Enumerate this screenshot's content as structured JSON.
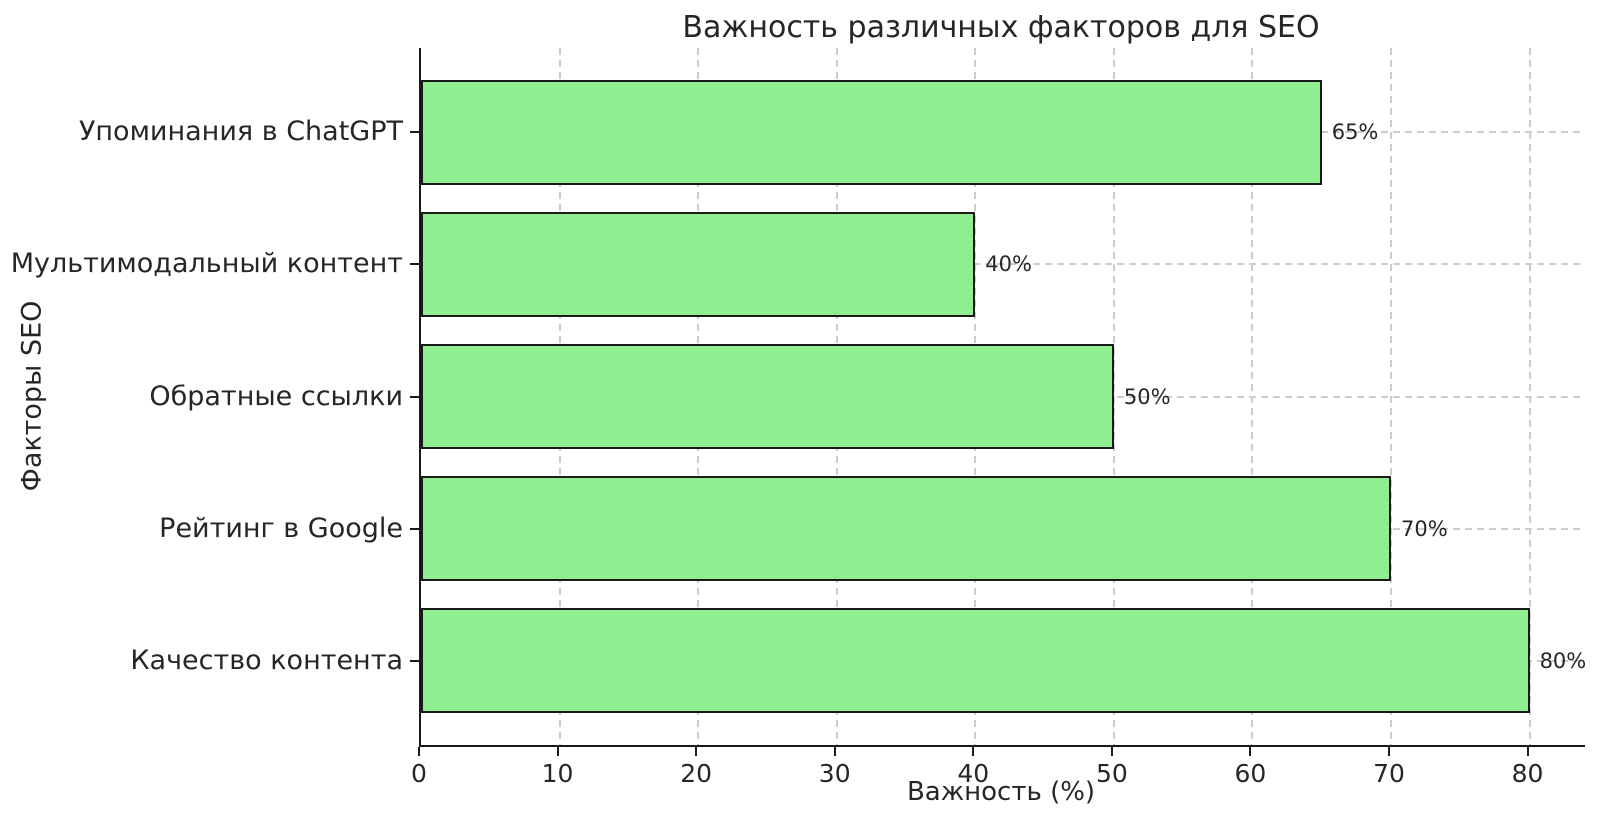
{
  "chart_data": {
    "type": "bar",
    "orientation": "horizontal",
    "title": "Важность различных факторов для SEO",
    "xlabel": "Важность (%)",
    "ylabel": "Факторы SEO",
    "categories": [
      "Упоминания в ChatGPT",
      "Мультимодальный контент",
      "Обратные ссылки",
      "Рейтинг в Google",
      "Качество контента"
    ],
    "values": [
      65,
      40,
      50,
      70,
      80
    ],
    "value_labels": [
      "65%",
      "40%",
      "50%",
      "70%",
      "80%"
    ],
    "x_ticks": [
      0,
      10,
      20,
      30,
      40,
      50,
      60,
      70,
      80
    ],
    "xlim": [
      0,
      84
    ],
    "grid": true,
    "grid_style": "dashed",
    "legend": "none",
    "colors": {
      "bar_fill": "#90EE90",
      "bar_edge": "#1a1a1a",
      "grid": "#cccccc",
      "text": "#262626",
      "background": "#ffffff"
    }
  }
}
